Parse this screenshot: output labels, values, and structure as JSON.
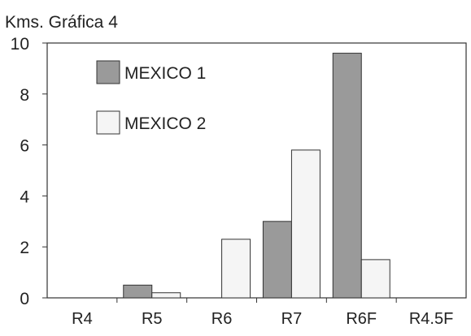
{
  "chart_data": {
    "type": "bar",
    "title": "Kms. Gráfica 4",
    "xlabel": "",
    "ylabel": "",
    "categories": [
      "R4",
      "R5",
      "R6",
      "R7",
      "R6F",
      "R4.5F"
    ],
    "series": [
      {
        "name": "MEXICO 1",
        "values": [
          0,
          0.5,
          0,
          3.0,
          9.6,
          0
        ],
        "color": "#9a9a9a"
      },
      {
        "name": "MEXICO 2",
        "values": [
          0,
          0.2,
          2.3,
          5.8,
          1.5,
          0
        ],
        "color": "#f5f5f5"
      }
    ],
    "ylim": [
      0,
      10
    ],
    "yticks": [
      "0",
      "2",
      "4",
      "6",
      "8",
      "10"
    ],
    "grid": false,
    "legend_position": "top-left inside"
  }
}
